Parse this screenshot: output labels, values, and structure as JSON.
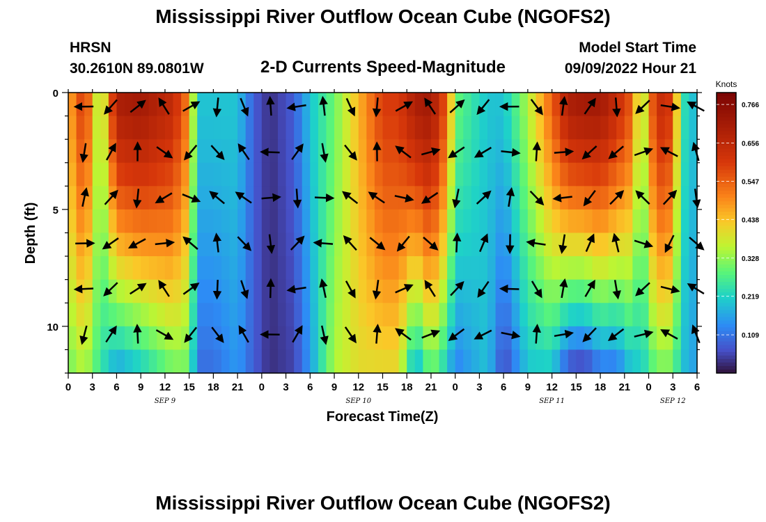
{
  "header": {
    "title": "Mississippi River Outflow Ocean Cube (NGOFS2)",
    "station": "HRSN",
    "coordinates": "30.2610N  89.0801W",
    "subtitle": "2-D Currents Speed-Magnitude",
    "model_start_label": "Model Start Time",
    "model_start_value": "09/09/2022 Hour 21"
  },
  "footer": {
    "title": "Mississippi River Outflow Ocean Cube (NGOFS2)"
  },
  "chart_data": {
    "type": "heatmap",
    "title": "2-D Currents Speed-Magnitude",
    "xlabel": "Forecast Time(Z)",
    "ylabel": "Depth (ft)",
    "x_range_hours": [
      0,
      78
    ],
    "y_range_ft": [
      0,
      12
    ],
    "x_tick_labels": [
      "0",
      "3",
      "6",
      "9",
      "12",
      "15",
      "18",
      "21",
      "0",
      "3",
      "6",
      "9",
      "12",
      "15",
      "18",
      "21",
      "0",
      "3",
      "6",
      "9",
      "12",
      "15",
      "18",
      "21",
      "0",
      "3",
      "6"
    ],
    "y_tick_labels": [
      "0",
      "5",
      "10"
    ],
    "y_tick_values": [
      0,
      5,
      10
    ],
    "day_labels": [
      {
        "text": "SEP 9",
        "hour": 12
      },
      {
        "text": "SEP 10",
        "hour": 36
      },
      {
        "text": "SEP 11",
        "hour": 60
      },
      {
        "text": "SEP 12",
        "hour": 75
      }
    ],
    "colorbar": {
      "title": "Knots",
      "min": 0.0,
      "max": 0.8,
      "tick_labels": [
        "0.766",
        "0.656",
        "0.547",
        "0.438",
        "0.328",
        "0.219",
        "0.109"
      ],
      "tick_values": [
        0.766,
        0.656,
        0.547,
        0.438,
        0.328,
        0.219,
        0.109
      ]
    },
    "speed_profile": {
      "hours": [
        0,
        2,
        4,
        6,
        9,
        13,
        15,
        16,
        18,
        21,
        23,
        25,
        28,
        30,
        33,
        36,
        39,
        41,
        43,
        45,
        47,
        48,
        52,
        54,
        57,
        60,
        62,
        64,
        66,
        68,
        70,
        71,
        73,
        75,
        76,
        78
      ],
      "surface_knots": [
        0.45,
        0.62,
        0.3,
        0.7,
        0.72,
        0.65,
        0.5,
        0.2,
        0.2,
        0.2,
        0.08,
        0.03,
        0.08,
        0.2,
        0.3,
        0.45,
        0.6,
        0.6,
        0.7,
        0.72,
        0.55,
        0.3,
        0.2,
        0.2,
        0.35,
        0.55,
        0.7,
        0.72,
        0.72,
        0.65,
        0.55,
        0.3,
        0.65,
        0.6,
        0.25,
        0.18
      ],
      "bottom_knots": [
        0.3,
        0.35,
        0.25,
        0.15,
        0.2,
        0.3,
        0.3,
        0.1,
        0.1,
        0.15,
        0.08,
        0.03,
        0.05,
        0.15,
        0.35,
        0.4,
        0.4,
        0.4,
        0.15,
        0.3,
        0.2,
        0.12,
        0.2,
        0.05,
        0.2,
        0.2,
        0.05,
        0.03,
        0.1,
        0.1,
        0.2,
        0.2,
        0.3,
        0.3,
        0.2,
        0.15
      ]
    }
  }
}
